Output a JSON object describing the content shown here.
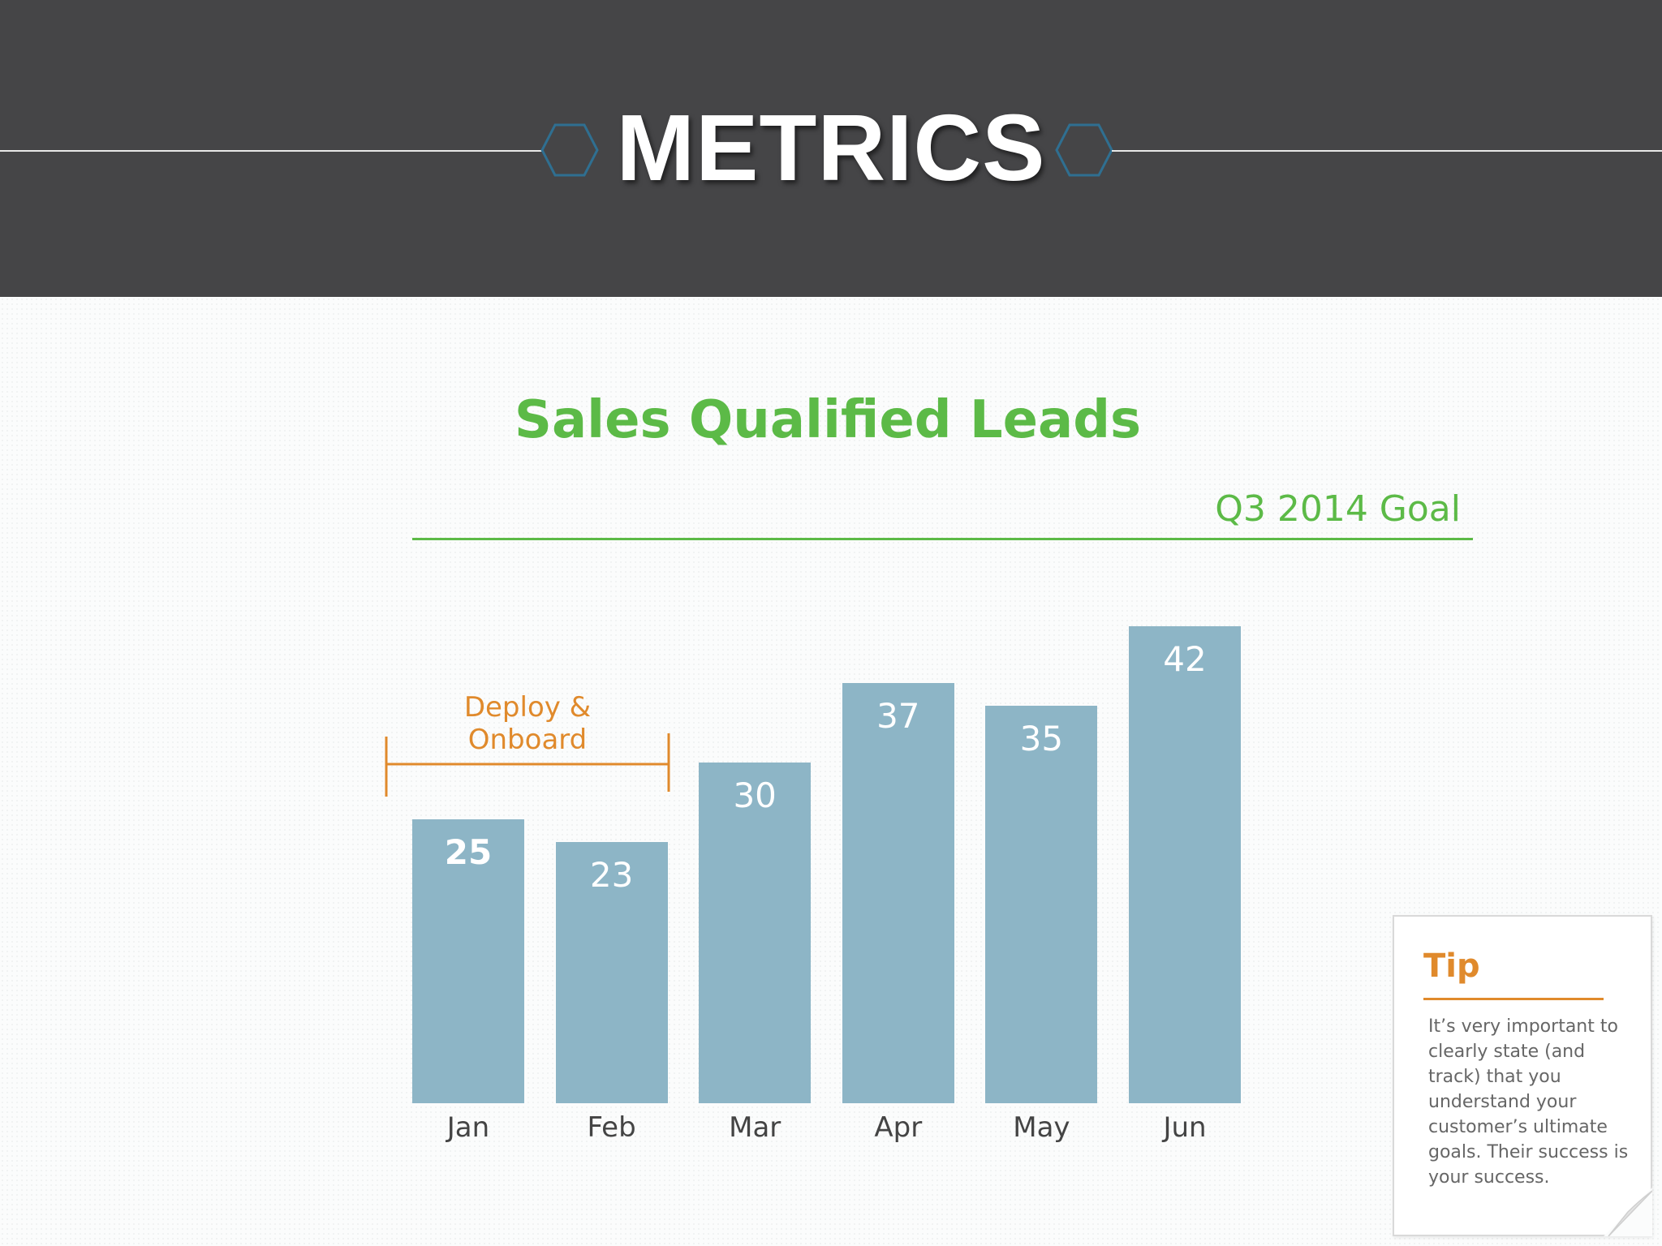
{
  "header": {
    "title": "METRICS"
  },
  "colors": {
    "header_bg": "#454547",
    "accent_green": "#5cba47",
    "bar": "#8db5c6",
    "annotation_orange": "#e08a2c",
    "hex_outline": "#2f6f91"
  },
  "icons": [
    "hexagon-outline-icon",
    "page-curl-icon"
  ],
  "chart_data": {
    "type": "bar",
    "title": "Sales Qualified Leads",
    "categories": [
      "Jan",
      "Feb",
      "Mar",
      "Apr",
      "May",
      "Jun"
    ],
    "values": [
      25,
      23,
      30,
      37,
      35,
      42
    ],
    "xlabel": "",
    "ylabel": "",
    "ylim": [
      0,
      50
    ],
    "grid": false,
    "reference_line": {
      "label": "Q3 2014 Goal",
      "value": 50
    },
    "annotations": [
      {
        "text": "Deploy & Onboard",
        "span": [
          "Jan",
          "Feb"
        ]
      }
    ]
  },
  "tip": {
    "title": "Tip",
    "text": "It’s very important to clearly state (and track) that you understand your customer’s ultimate goals. Their success is your success."
  }
}
